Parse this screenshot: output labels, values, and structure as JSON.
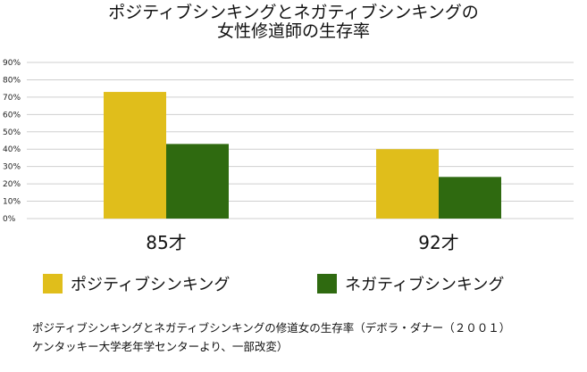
{
  "chart_data": {
    "type": "bar",
    "title": [
      "ポジティブシンキングとネガティブシンキングの",
      "女性修道師の生存率"
    ],
    "categories": [
      "85才",
      "92才"
    ],
    "series": [
      {
        "name": "ポジティブシンキング",
        "values": [
          73,
          40
        ],
        "color": "#e0be1b"
      },
      {
        "name": "ネガティブシンキング",
        "values": [
          43,
          24
        ],
        "color": "#2f6a10"
      }
    ],
    "yticks": [
      "0%",
      "10%",
      "20%",
      "30%",
      "40%",
      "50%",
      "60%",
      "70%",
      "80%",
      "90%"
    ],
    "ylim": [
      0,
      90
    ],
    "grid": true,
    "legend_position": "bottom"
  },
  "caption": [
    "ポジティブシンキングとネガティブシンキングの修道女の生存率（デボラ・ダナー（２００１）",
    "ケンタッキー大学老年学センターより、一部改変）"
  ]
}
